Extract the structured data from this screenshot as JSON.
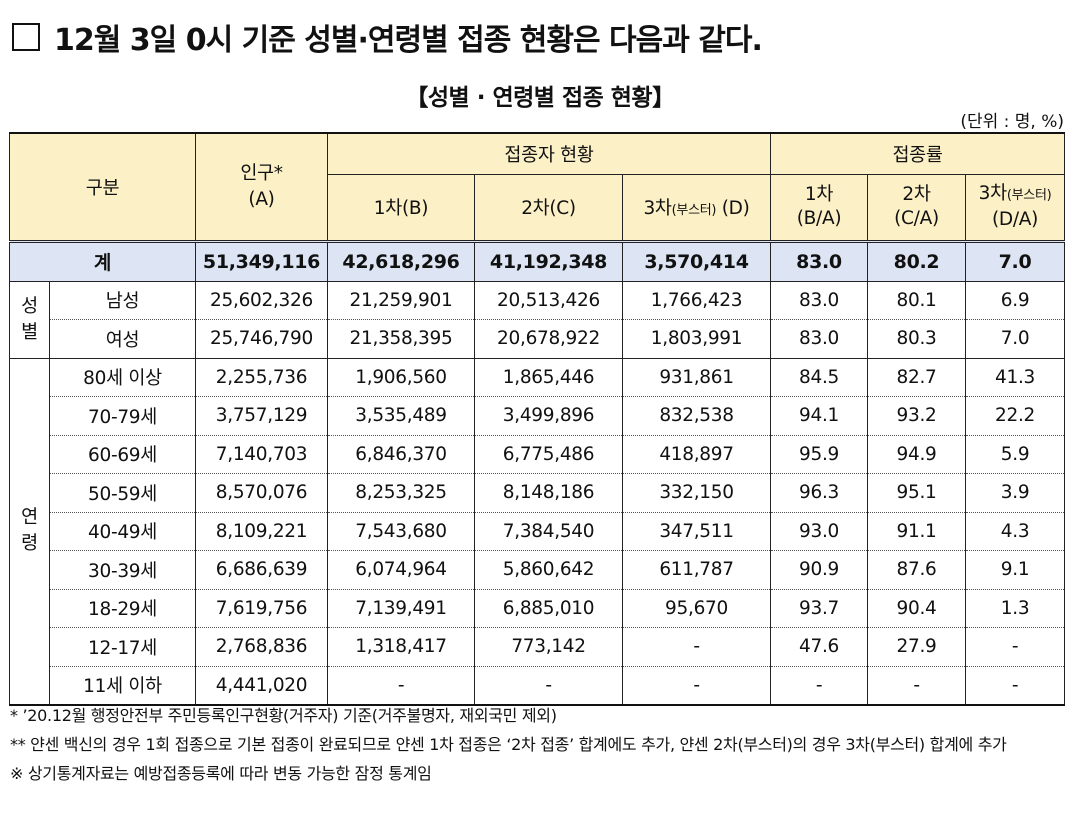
{
  "heading": {
    "text": "12월 3일 0시 기준 성별·연령별 접종 현황은 다음과 같다."
  },
  "subtitle": "【성별 · 연령별 접종 현황】",
  "unit": "(단위 : 명, %)",
  "header": {
    "category": "구분",
    "population": "인구*",
    "population_code": "(A)",
    "vaccinated_group": "접종자 현황",
    "rate_group": "접종률",
    "dose1": "1차(B)",
    "dose2": "2차(C)",
    "dose3_main": "3차",
    "dose3_small": "(부스터)",
    "dose3_code": " (D)",
    "rate1_label": "1차",
    "rate1_code": "(B/A)",
    "rate2_label": "2차",
    "rate2_code": "(C/A)",
    "rate3_label": "3차",
    "rate3_small": "(부스터)",
    "rate3_code": "(D/A)"
  },
  "total": {
    "label": "계",
    "population": "51,349,116",
    "dose1": "42,618,296",
    "dose2": "41,192,348",
    "dose3": "3,570,414",
    "rate1": "83.0",
    "rate2": "80.2",
    "rate3": "7.0"
  },
  "groups": {
    "gender": {
      "line1": "성",
      "line2": "별"
    },
    "age": {
      "line1": "연",
      "line2": "령"
    }
  },
  "rows": [
    {
      "label": "남성",
      "population": "25,602,326",
      "dose1": "21,259,901",
      "dose2": "20,513,426",
      "dose3": "1,766,423",
      "rate1": "83.0",
      "rate2": "80.1",
      "rate3": "6.9"
    },
    {
      "label": "여성",
      "population": "25,746,790",
      "dose1": "21,358,395",
      "dose2": "20,678,922",
      "dose3": "1,803,991",
      "rate1": "83.0",
      "rate2": "80.3",
      "rate3": "7.0"
    },
    {
      "label": "80세 이상",
      "population": "2,255,736",
      "dose1": "1,906,560",
      "dose2": "1,865,446",
      "dose3": "931,861",
      "rate1": "84.5",
      "rate2": "82.7",
      "rate3": "41.3"
    },
    {
      "label": "70-79세",
      "population": "3,757,129",
      "dose1": "3,535,489",
      "dose2": "3,499,896",
      "dose3": "832,538",
      "rate1": "94.1",
      "rate2": "93.2",
      "rate3": "22.2"
    },
    {
      "label": "60-69세",
      "population": "7,140,703",
      "dose1": "6,846,370",
      "dose2": "6,775,486",
      "dose3": "418,897",
      "rate1": "95.9",
      "rate2": "94.9",
      "rate3": "5.9"
    },
    {
      "label": "50-59세",
      "population": "8,570,076",
      "dose1": "8,253,325",
      "dose2": "8,148,186",
      "dose3": "332,150",
      "rate1": "96.3",
      "rate2": "95.1",
      "rate3": "3.9"
    },
    {
      "label": "40-49세",
      "population": "8,109,221",
      "dose1": "7,543,680",
      "dose2": "7,384,540",
      "dose3": "347,511",
      "rate1": "93.0",
      "rate2": "91.1",
      "rate3": "4.3"
    },
    {
      "label": "30-39세",
      "population": "6,686,639",
      "dose1": "6,074,964",
      "dose2": "5,860,642",
      "dose3": "611,787",
      "rate1": "90.9",
      "rate2": "87.6",
      "rate3": "9.1"
    },
    {
      "label": "18-29세",
      "population": "7,619,756",
      "dose1": "7,139,491",
      "dose2": "6,885,010",
      "dose3": "95,670",
      "rate1": "93.7",
      "rate2": "90.4",
      "rate3": "1.3"
    },
    {
      "label": "12-17세",
      "population": "2,768,836",
      "dose1": "1,318,417",
      "dose2": "773,142",
      "dose3": "-",
      "rate1": "47.6",
      "rate2": "27.9",
      "rate3": "-"
    },
    {
      "label": "11세 이하",
      "population": "4,441,020",
      "dose1": "-",
      "dose2": "-",
      "dose3": "-",
      "rate1": "-",
      "rate2": "-",
      "rate3": "-"
    }
  ],
  "notes": [
    "* ’20.12월 행정안전부 주민등록인구현황(거주자) 기준(거주불명자, 재외국민 제외)",
    "** 얀센 백신의 경우 1회 접종으로 기본 접종이 완료되므로 얀센 1차 접종은 ‘2차 접종’ 합계에도 추가, 얀센 2차(부스터)의 경우 3차(부스터) 합계에 추가",
    "※ 상기통계자료는 예방접종등록에 따라 변동 가능한 잠정 통계임"
  ]
}
